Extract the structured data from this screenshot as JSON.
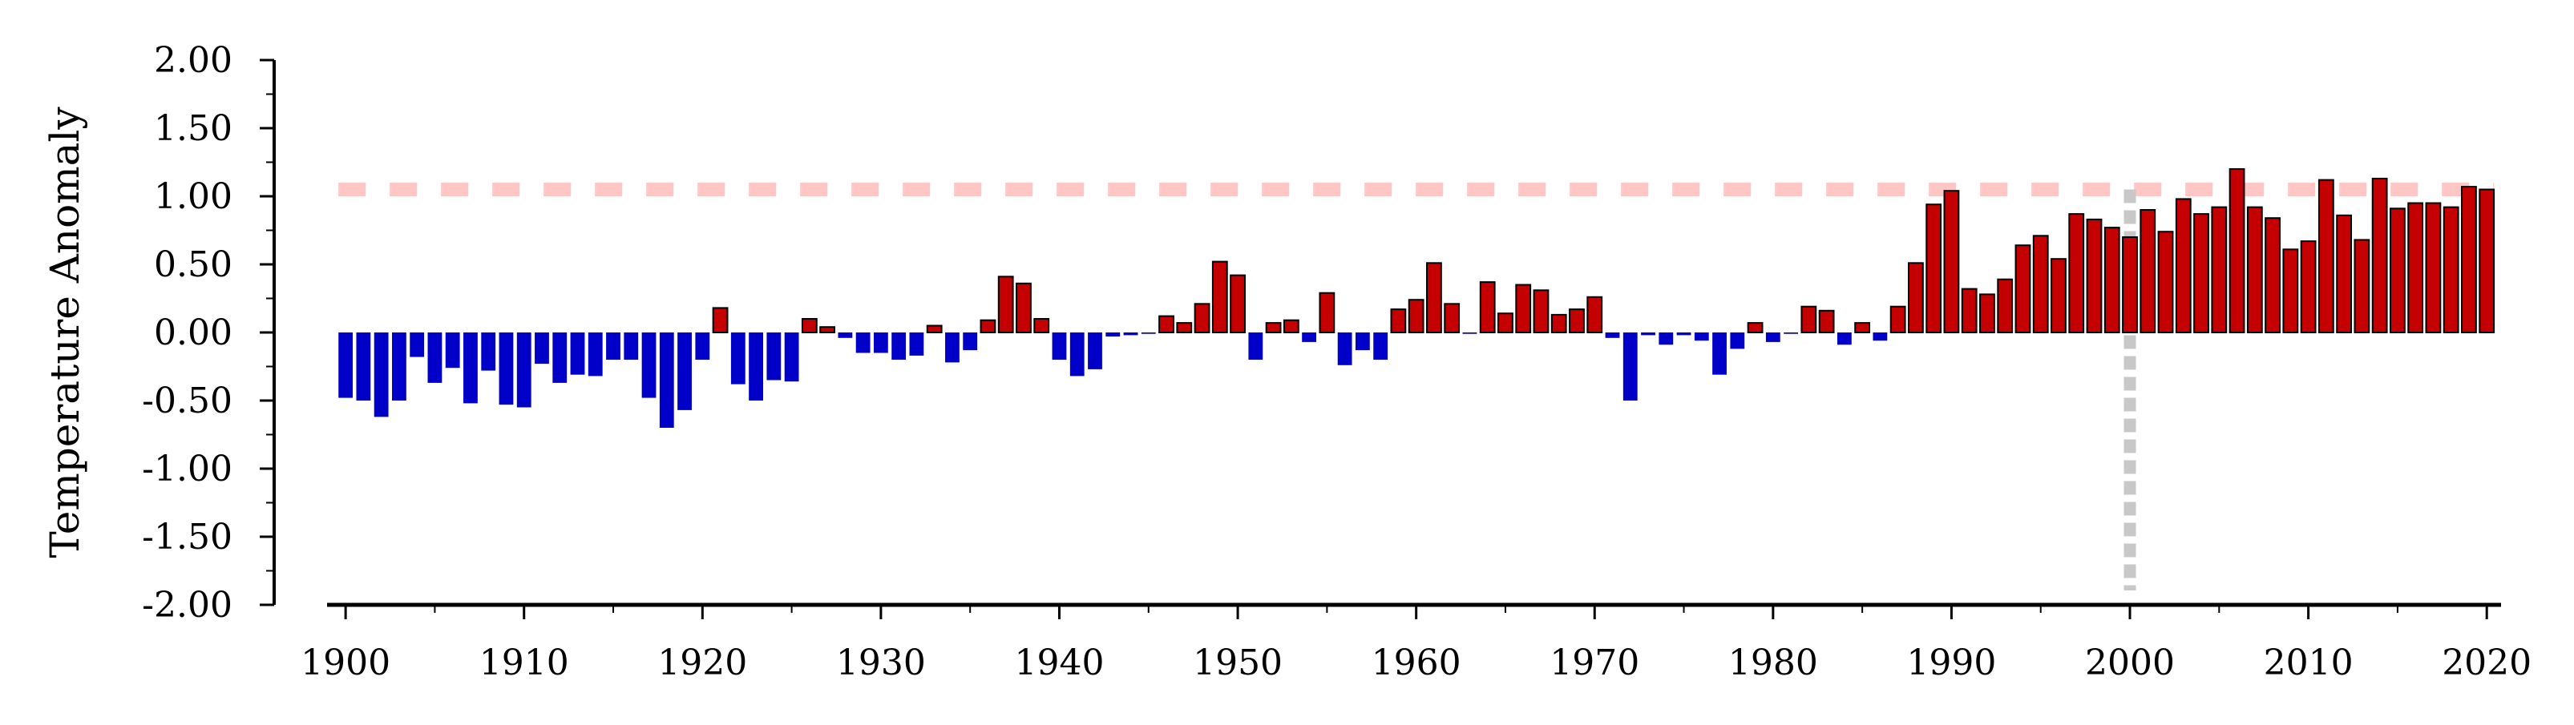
{
  "chart_data": {
    "type": "bar",
    "title": "",
    "xlabel": "",
    "ylabel": "Temperature Anomaly",
    "xlim": [
      1899.5,
      2020.8
    ],
    "ylim": [
      -2.0,
      2.0
    ],
    "yticks": [
      "2.00",
      "1.50",
      "1.00",
      "0.50",
      "0.00",
      "-0.50",
      "-1.00",
      "-1.50",
      "-2.00"
    ],
    "xticks": [
      "1900",
      "1910",
      "1920",
      "1930",
      "1940",
      "1950",
      "1960",
      "1970",
      "1980",
      "1990",
      "2000",
      "2010",
      "2020"
    ],
    "grid": false,
    "legend": "none",
    "colors": {
      "positive": "#c40000",
      "negative": "#0000c8",
      "reference_hline": "#ffc6c6",
      "reference_vline": "#c8c8c8"
    },
    "reference_lines": {
      "hline_y": 1.05,
      "vline_x": 2000
    },
    "x": [
      1900,
      1901,
      1902,
      1903,
      1904,
      1905,
      1906,
      1907,
      1908,
      1909,
      1910,
      1911,
      1912,
      1913,
      1914,
      1915,
      1916,
      1917,
      1918,
      1919,
      1920,
      1921,
      1922,
      1923,
      1924,
      1925,
      1926,
      1927,
      1928,
      1929,
      1930,
      1931,
      1932,
      1933,
      1934,
      1935,
      1936,
      1937,
      1938,
      1939,
      1940,
      1941,
      1942,
      1943,
      1944,
      1945,
      1946,
      1947,
      1948,
      1949,
      1950,
      1951,
      1952,
      1953,
      1954,
      1955,
      1956,
      1957,
      1958,
      1959,
      1960,
      1961,
      1962,
      1963,
      1964,
      1965,
      1966,
      1967,
      1968,
      1969,
      1970,
      1971,
      1972,
      1973,
      1974,
      1975,
      1976,
      1977,
      1978,
      1979,
      1980,
      1981,
      1982,
      1983,
      1984,
      1985,
      1986,
      1987,
      1988,
      1989,
      1990,
      1991,
      1992,
      1993,
      1994,
      1995,
      1996,
      1997,
      1998,
      1999,
      2000,
      2001,
      2002,
      2003,
      2004,
      2005,
      2006,
      2007,
      2008,
      2009,
      2010,
      2011,
      2012,
      2013,
      2014,
      2015,
      2016,
      2017,
      2018,
      2019,
      2020
    ],
    "values": [
      -0.48,
      -0.5,
      -0.62,
      -0.5,
      -0.18,
      -0.37,
      -0.26,
      -0.52,
      -0.28,
      -0.53,
      -0.55,
      -0.23,
      -0.37,
      -0.31,
      -0.32,
      -0.2,
      -0.2,
      -0.48,
      -0.7,
      -0.57,
      -0.2,
      0.18,
      -0.38,
      -0.5,
      -0.35,
      -0.36,
      0.1,
      0.04,
      -0.04,
      -0.15,
      -0.15,
      -0.2,
      -0.17,
      0.05,
      -0.22,
      -0.13,
      0.09,
      0.41,
      0.36,
      0.1,
      -0.2,
      -0.32,
      -0.27,
      -0.03,
      -0.02,
      -0.01,
      0.12,
      0.07,
      0.21,
      0.52,
      0.42,
      -0.2,
      0.07,
      0.09,
      -0.07,
      0.29,
      -0.24,
      -0.13,
      -0.2,
      0.17,
      0.24,
      0.51,
      0.21,
      -0.01,
      0.37,
      0.14,
      0.35,
      0.31,
      0.13,
      0.17,
      0.26,
      -0.04,
      -0.5,
      -0.02,
      -0.09,
      -0.02,
      -0.06,
      -0.31,
      -0.12,
      0.07,
      -0.07,
      -0.01,
      0.19,
      0.16,
      -0.09,
      0.07,
      -0.06,
      0.19,
      0.51,
      0.94,
      1.04,
      0.32,
      0.28,
      0.39,
      0.64,
      0.71,
      0.54,
      0.87,
      0.83,
      0.77,
      0.7,
      0.9,
      0.74,
      0.98,
      0.87,
      0.92,
      1.2,
      0.92,
      0.84,
      0.61,
      0.67,
      1.12,
      0.86,
      0.68,
      1.13,
      0.91,
      0.95,
      0.95,
      0.92,
      1.07,
      1.05
    ]
  }
}
